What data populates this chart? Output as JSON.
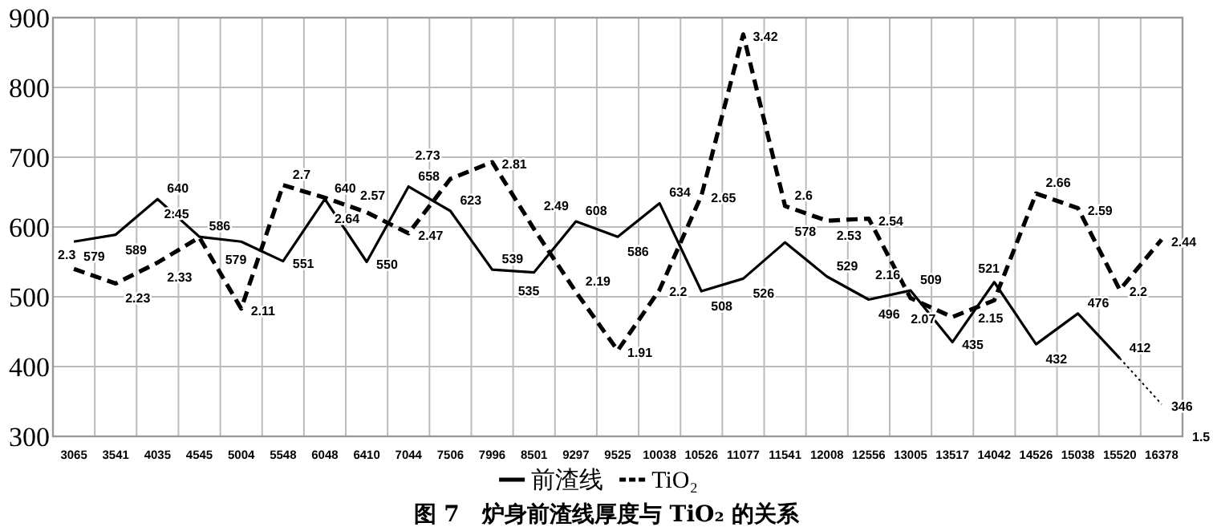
{
  "chart_data": {
    "type": "line",
    "title": "图 7　炉身前渣线厚度与 TiO₂ 的关系",
    "categories": [
      "3065",
      "3541",
      "4035",
      "4545",
      "5004",
      "5548",
      "6048",
      "6410",
      "7044",
      "7506",
      "7996",
      "8501",
      "9297",
      "9525",
      "10038",
      "10526",
      "11077",
      "11541",
      "12008",
      "12556",
      "13005",
      "13517",
      "14042",
      "14526",
      "15038",
      "15520",
      "16378"
    ],
    "series": [
      {
        "name": "前渣线",
        "color": "#000000",
        "line_style": "solid",
        "values": [
          579,
          589,
          640,
          586,
          579,
          551,
          640,
          550,
          658,
          623,
          539,
          535,
          608,
          586,
          634,
          508,
          526,
          578,
          529,
          496,
          509,
          435,
          521,
          432,
          476,
          412,
          null
        ]
      },
      {
        "name": "TiO₂",
        "color": "#000000",
        "line_style": "dashed",
        "axis": "y2",
        "values": [
          2.3,
          2.23,
          2.33,
          2.45,
          2.11,
          2.7,
          2.64,
          2.57,
          2.47,
          2.73,
          2.81,
          2.49,
          2.19,
          1.91,
          2.2,
          2.65,
          3.42,
          2.6,
          2.53,
          2.54,
          2.16,
          2.07,
          2.15,
          2.66,
          2.59,
          2.2,
          2.44
        ]
      },
      {
        "color": "#000000",
        "line_style": "dotted",
        "values": [
          null,
          null,
          null,
          null,
          null,
          null,
          null,
          null,
          null,
          null,
          null,
          null,
          null,
          null,
          null,
          null,
          null,
          null,
          null,
          null,
          null,
          null,
          null,
          null,
          null,
          412,
          346
        ],
        "value_labels": [
          null,
          null,
          null,
          null,
          null,
          null,
          null,
          null,
          null,
          null,
          null,
          null,
          null,
          null,
          null,
          null,
          null,
          null,
          null,
          null,
          null,
          null,
          null,
          null,
          null,
          null,
          "346"
        ]
      }
    ],
    "ylim": [
      300,
      900
    ],
    "yticks": [
      300,
      400,
      500,
      600,
      700,
      800,
      900
    ],
    "y2lim": [
      1.5,
      3.5
    ],
    "annotations": [
      "1.5"
    ],
    "grid": true,
    "legend": "bottom",
    "data_labels": true,
    "marker": "none"
  }
}
